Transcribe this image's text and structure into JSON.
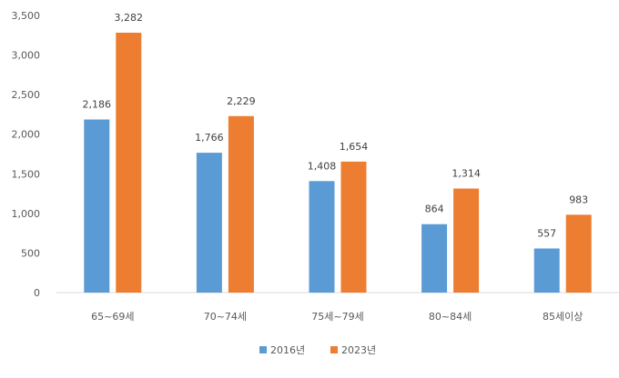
{
  "chart_data": {
    "type": "bar",
    "categories": [
      "65~69세",
      "70~74세",
      "75세~79세",
      "80~84세",
      "85세이상"
    ],
    "series": [
      {
        "name": "2016년",
        "values": [
          2186,
          1766,
          1408,
          864,
          557
        ],
        "color": "#5B9BD5"
      },
      {
        "name": "2023년",
        "values": [
          3282,
          2229,
          1654,
          1314,
          983
        ],
        "color": "#ED7D31"
      }
    ],
    "data_labels": [
      [
        "2,186",
        "1,766",
        "1,408",
        "864",
        "557"
      ],
      [
        "3,282",
        "2,229",
        "1,654",
        "1,314",
        "983"
      ]
    ],
    "yticks": [
      {
        "value": 0,
        "label": "0"
      },
      {
        "value": 500,
        "label": "500"
      },
      {
        "value": 1000,
        "label": "1,000"
      },
      {
        "value": 1500,
        "label": "1,500"
      },
      {
        "value": 2000,
        "label": "2,000"
      },
      {
        "value": 2500,
        "label": "2,500"
      },
      {
        "value": 3000,
        "label": "3,000"
      },
      {
        "value": 3500,
        "label": "3,500"
      }
    ],
    "ylim": [
      0,
      3500
    ],
    "grid": false,
    "legend_position": "bottom",
    "axis_color": "#d9d9d9"
  }
}
